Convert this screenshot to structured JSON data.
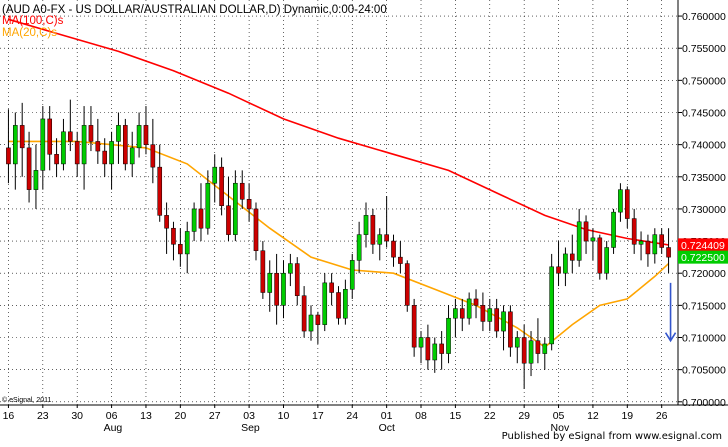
{
  "chart_data": {
    "type": "candlestick",
    "title": "(AUD A0-FX - US DOLLAR/AUSTRALIAN DOLLAR,D) Dynamic,0:00-24:00",
    "legend": [
      {
        "label": "MA(100,C)s",
        "color": "#ff0000"
      },
      {
        "label": "MA(20,C)s",
        "color": "#ffa500"
      }
    ],
    "watermark": "© eSignal, 2011",
    "credit": "Published by eSignal from www.esignal.com",
    "ylim": [
      0.6995,
      0.7625
    ],
    "y_ticks": [
      "0.700000",
      "0.705000",
      "0.710000",
      "0.715000",
      "0.720000",
      "0.725000",
      "0.730000",
      "0.735000",
      "0.740000",
      "0.745000",
      "0.750000",
      "0.755000",
      "0.760000"
    ],
    "x_tick_labels": [
      "16",
      "23",
      "30",
      "06",
      "13",
      "20",
      "27",
      "03",
      "10",
      "17",
      "24",
      "01",
      "08",
      "15",
      "22",
      "29",
      "05",
      "12",
      "19",
      "26"
    ],
    "month_labels": [
      {
        "label": "Aug",
        "at_tick": "06"
      },
      {
        "label": "Sep",
        "at_tick": "03"
      },
      {
        "label": "Oct",
        "at_tick": "01"
      },
      {
        "label": "Nov",
        "at_tick": "05"
      }
    ],
    "last_values": [
      {
        "series": "MA(100,C)s",
        "value": "0.724409",
        "color": "#ff0000"
      },
      {
        "series": "Close",
        "value": "0.722500",
        "color": "#00cc00"
      }
    ],
    "annotation": {
      "type": "arrow",
      "direction": "down",
      "color": "#3355cc",
      "from": 0.7185,
      "to": 0.7095
    },
    "grid": true,
    "up_color": "#00cc00",
    "down_color": "#cc0000",
    "candles": [
      {
        "o": 0.7395,
        "h": 0.7455,
        "l": 0.734,
        "c": 0.737
      },
      {
        "o": 0.737,
        "h": 0.745,
        "l": 0.733,
        "c": 0.743
      },
      {
        "o": 0.743,
        "h": 0.7465,
        "l": 0.735,
        "c": 0.7395
      },
      {
        "o": 0.7395,
        "h": 0.742,
        "l": 0.731,
        "c": 0.733
      },
      {
        "o": 0.733,
        "h": 0.74,
        "l": 0.73,
        "c": 0.736
      },
      {
        "o": 0.736,
        "h": 0.746,
        "l": 0.733,
        "c": 0.744
      },
      {
        "o": 0.744,
        "h": 0.746,
        "l": 0.736,
        "c": 0.7385
      },
      {
        "o": 0.7385,
        "h": 0.741,
        "l": 0.735,
        "c": 0.737
      },
      {
        "o": 0.737,
        "h": 0.744,
        "l": 0.736,
        "c": 0.742
      },
      {
        "o": 0.742,
        "h": 0.747,
        "l": 0.739,
        "c": 0.7405
      },
      {
        "o": 0.7405,
        "h": 0.742,
        "l": 0.735,
        "c": 0.737
      },
      {
        "o": 0.737,
        "h": 0.746,
        "l": 0.733,
        "c": 0.743
      },
      {
        "o": 0.743,
        "h": 0.746,
        "l": 0.739,
        "c": 0.7405
      },
      {
        "o": 0.7405,
        "h": 0.744,
        "l": 0.737,
        "c": 0.739
      },
      {
        "o": 0.739,
        "h": 0.741,
        "l": 0.735,
        "c": 0.737
      },
      {
        "o": 0.737,
        "h": 0.742,
        "l": 0.733,
        "c": 0.7405
      },
      {
        "o": 0.7405,
        "h": 0.745,
        "l": 0.737,
        "c": 0.743
      },
      {
        "o": 0.743,
        "h": 0.744,
        "l": 0.736,
        "c": 0.737
      },
      {
        "o": 0.737,
        "h": 0.742,
        "l": 0.735,
        "c": 0.7395
      },
      {
        "o": 0.7395,
        "h": 0.745,
        "l": 0.738,
        "c": 0.743
      },
      {
        "o": 0.743,
        "h": 0.746,
        "l": 0.7385,
        "c": 0.74
      },
      {
        "o": 0.74,
        "h": 0.744,
        "l": 0.734,
        "c": 0.7365
      },
      {
        "o": 0.7365,
        "h": 0.74,
        "l": 0.728,
        "c": 0.729
      },
      {
        "o": 0.729,
        "h": 0.731,
        "l": 0.723,
        "c": 0.727
      },
      {
        "o": 0.727,
        "h": 0.728,
        "l": 0.722,
        "c": 0.7245
      },
      {
        "o": 0.7245,
        "h": 0.727,
        "l": 0.721,
        "c": 0.723
      },
      {
        "o": 0.723,
        "h": 0.728,
        "l": 0.72,
        "c": 0.7265
      },
      {
        "o": 0.7265,
        "h": 0.731,
        "l": 0.725,
        "c": 0.73
      },
      {
        "o": 0.73,
        "h": 0.734,
        "l": 0.725,
        "c": 0.727
      },
      {
        "o": 0.727,
        "h": 0.736,
        "l": 0.726,
        "c": 0.734
      },
      {
        "o": 0.734,
        "h": 0.7385,
        "l": 0.731,
        "c": 0.7365
      },
      {
        "o": 0.7365,
        "h": 0.738,
        "l": 0.729,
        "c": 0.7305
      },
      {
        "o": 0.7305,
        "h": 0.735,
        "l": 0.725,
        "c": 0.726
      },
      {
        "o": 0.726,
        "h": 0.736,
        "l": 0.725,
        "c": 0.734
      },
      {
        "o": 0.734,
        "h": 0.736,
        "l": 0.73,
        "c": 0.7315
      },
      {
        "o": 0.7315,
        "h": 0.734,
        "l": 0.728,
        "c": 0.73
      },
      {
        "o": 0.73,
        "h": 0.731,
        "l": 0.722,
        "c": 0.7235
      },
      {
        "o": 0.7235,
        "h": 0.725,
        "l": 0.716,
        "c": 0.717
      },
      {
        "o": 0.717,
        "h": 0.722,
        "l": 0.714,
        "c": 0.72
      },
      {
        "o": 0.72,
        "h": 0.723,
        "l": 0.712,
        "c": 0.715
      },
      {
        "o": 0.715,
        "h": 0.722,
        "l": 0.713,
        "c": 0.72
      },
      {
        "o": 0.72,
        "h": 0.723,
        "l": 0.718,
        "c": 0.7215
      },
      {
        "o": 0.7215,
        "h": 0.7225,
        "l": 0.715,
        "c": 0.7165
      },
      {
        "o": 0.7165,
        "h": 0.718,
        "l": 0.71,
        "c": 0.711
      },
      {
        "o": 0.711,
        "h": 0.715,
        "l": 0.7095,
        "c": 0.7135
      },
      {
        "o": 0.7135,
        "h": 0.714,
        "l": 0.709,
        "c": 0.712
      },
      {
        "o": 0.712,
        "h": 0.72,
        "l": 0.711,
        "c": 0.7185
      },
      {
        "o": 0.7185,
        "h": 0.72,
        "l": 0.715,
        "c": 0.717
      },
      {
        "o": 0.717,
        "h": 0.718,
        "l": 0.712,
        "c": 0.713
      },
      {
        "o": 0.713,
        "h": 0.719,
        "l": 0.712,
        "c": 0.7175
      },
      {
        "o": 0.7175,
        "h": 0.723,
        "l": 0.716,
        "c": 0.722
      },
      {
        "o": 0.722,
        "h": 0.728,
        "l": 0.72,
        "c": 0.726
      },
      {
        "o": 0.726,
        "h": 0.731,
        "l": 0.724,
        "c": 0.729
      },
      {
        "o": 0.729,
        "h": 0.73,
        "l": 0.723,
        "c": 0.7245
      },
      {
        "o": 0.7245,
        "h": 0.727,
        "l": 0.722,
        "c": 0.726
      },
      {
        "o": 0.726,
        "h": 0.732,
        "l": 0.724,
        "c": 0.725
      },
      {
        "o": 0.725,
        "h": 0.726,
        "l": 0.721,
        "c": 0.7225
      },
      {
        "o": 0.7225,
        "h": 0.725,
        "l": 0.72,
        "c": 0.7215
      },
      {
        "o": 0.7215,
        "h": 0.722,
        "l": 0.714,
        "c": 0.715
      },
      {
        "o": 0.715,
        "h": 0.716,
        "l": 0.707,
        "c": 0.7085
      },
      {
        "o": 0.7085,
        "h": 0.711,
        "l": 0.706,
        "c": 0.71
      },
      {
        "o": 0.71,
        "h": 0.712,
        "l": 0.705,
        "c": 0.7065
      },
      {
        "o": 0.7065,
        "h": 0.71,
        "l": 0.7045,
        "c": 0.709
      },
      {
        "o": 0.709,
        "h": 0.711,
        "l": 0.705,
        "c": 0.7075
      },
      {
        "o": 0.7075,
        "h": 0.715,
        "l": 0.706,
        "c": 0.713
      },
      {
        "o": 0.713,
        "h": 0.716,
        "l": 0.71,
        "c": 0.7145
      },
      {
        "o": 0.7145,
        "h": 0.716,
        "l": 0.711,
        "c": 0.713
      },
      {
        "o": 0.713,
        "h": 0.717,
        "l": 0.712,
        "c": 0.716
      },
      {
        "o": 0.716,
        "h": 0.7175,
        "l": 0.713,
        "c": 0.715
      },
      {
        "o": 0.715,
        "h": 0.717,
        "l": 0.711,
        "c": 0.7125
      },
      {
        "o": 0.7125,
        "h": 0.716,
        "l": 0.711,
        "c": 0.7145
      },
      {
        "o": 0.7145,
        "h": 0.716,
        "l": 0.71,
        "c": 0.711
      },
      {
        "o": 0.711,
        "h": 0.715,
        "l": 0.708,
        "c": 0.714
      },
      {
        "o": 0.714,
        "h": 0.715,
        "l": 0.707,
        "c": 0.7085
      },
      {
        "o": 0.7085,
        "h": 0.711,
        "l": 0.706,
        "c": 0.71
      },
      {
        "o": 0.71,
        "h": 0.712,
        "l": 0.702,
        "c": 0.706
      },
      {
        "o": 0.706,
        "h": 0.711,
        "l": 0.704,
        "c": 0.7095
      },
      {
        "o": 0.7095,
        "h": 0.713,
        "l": 0.706,
        "c": 0.7075
      },
      {
        "o": 0.7075,
        "h": 0.71,
        "l": 0.705,
        "c": 0.709
      },
      {
        "o": 0.709,
        "h": 0.723,
        "l": 0.708,
        "c": 0.721
      },
      {
        "o": 0.721,
        "h": 0.725,
        "l": 0.718,
        "c": 0.72
      },
      {
        "o": 0.72,
        "h": 0.724,
        "l": 0.718,
        "c": 0.723
      },
      {
        "o": 0.723,
        "h": 0.726,
        "l": 0.72,
        "c": 0.722
      },
      {
        "o": 0.722,
        "h": 0.73,
        "l": 0.721,
        "c": 0.728
      },
      {
        "o": 0.728,
        "h": 0.729,
        "l": 0.723,
        "c": 0.725
      },
      {
        "o": 0.725,
        "h": 0.727,
        "l": 0.722,
        "c": 0.7255
      },
      {
        "o": 0.7255,
        "h": 0.726,
        "l": 0.719,
        "c": 0.72
      },
      {
        "o": 0.72,
        "h": 0.725,
        "l": 0.719,
        "c": 0.724
      },
      {
        "o": 0.724,
        "h": 0.73,
        "l": 0.723,
        "c": 0.7295
      },
      {
        "o": 0.7295,
        "h": 0.734,
        "l": 0.728,
        "c": 0.733
      },
      {
        "o": 0.733,
        "h": 0.7335,
        "l": 0.727,
        "c": 0.7285
      },
      {
        "o": 0.7285,
        "h": 0.73,
        "l": 0.723,
        "c": 0.7245
      },
      {
        "o": 0.7245,
        "h": 0.7265,
        "l": 0.722,
        "c": 0.725
      },
      {
        "o": 0.725,
        "h": 0.726,
        "l": 0.721,
        "c": 0.723
      },
      {
        "o": 0.723,
        "h": 0.727,
        "l": 0.7215,
        "c": 0.726
      },
      {
        "o": 0.726,
        "h": 0.727,
        "l": 0.723,
        "c": 0.724
      },
      {
        "o": 0.724,
        "h": 0.727,
        "l": 0.72,
        "c": 0.7225
      }
    ],
    "ma100": [
      [
        0,
        0.7595
      ],
      [
        8,
        0.757
      ],
      [
        16,
        0.7545
      ],
      [
        24,
        0.7515
      ],
      [
        32,
        0.748
      ],
      [
        40,
        0.744
      ],
      [
        48,
        0.741
      ],
      [
        56,
        0.7385
      ],
      [
        64,
        0.736
      ],
      [
        72,
        0.732
      ],
      [
        78,
        0.729
      ],
      [
        84,
        0.7268
      ],
      [
        90,
        0.7254
      ],
      [
        96,
        0.7244
      ]
    ],
    "ma20": [
      [
        0,
        0.7405
      ],
      [
        10,
        0.7405
      ],
      [
        20,
        0.7395
      ],
      [
        26,
        0.737
      ],
      [
        32,
        0.732
      ],
      [
        38,
        0.727
      ],
      [
        44,
        0.7225
      ],
      [
        50,
        0.7205
      ],
      [
        56,
        0.72
      ],
      [
        62,
        0.7175
      ],
      [
        68,
        0.715
      ],
      [
        74,
        0.7115
      ],
      [
        78,
        0.7085
      ],
      [
        82,
        0.712
      ],
      [
        86,
        0.715
      ],
      [
        90,
        0.716
      ],
      [
        94,
        0.7195
      ],
      [
        96,
        0.7215
      ]
    ]
  }
}
